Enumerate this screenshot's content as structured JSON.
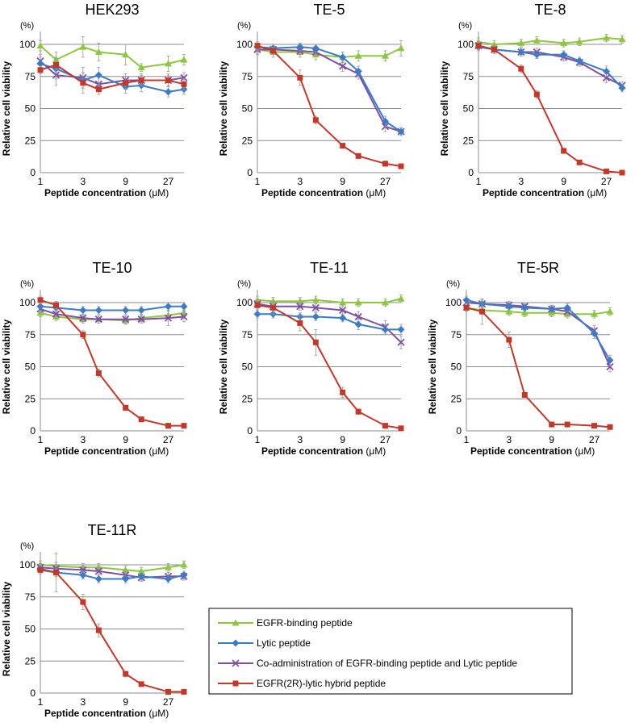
{
  "chart_data": {
    "type": "line",
    "legend": {
      "placement": "bottom-right",
      "series": [
        {
          "key": "egfr",
          "name": "EGFR-binding peptide",
          "color": "#8DC63F",
          "marker": "triangle"
        },
        {
          "key": "lytic",
          "name": "Lytic peptide",
          "color": "#3B7CC4",
          "marker": "diamond"
        },
        {
          "key": "coadmin",
          "name": "Co-administration of EGFR-binding peptide and Lytic peptide",
          "color": "#7F4FA6",
          "marker": "x"
        },
        {
          "key": "hybrid",
          "name": "EGFR(2R)-lytic hybrid peptide",
          "color": "#C0392B",
          "marker": "square"
        }
      ]
    },
    "x": [
      1,
      1.5,
      3,
      4.5,
      9,
      13.5,
      27,
      40.5
    ],
    "xticks": [
      1,
      3,
      9,
      27
    ],
    "xtick_labels": [
      "1",
      "3",
      "9",
      "27"
    ],
    "yticks": [
      0,
      25,
      50,
      75,
      100
    ],
    "ytick_labels": [
      "0",
      "25",
      "50",
      "75",
      "100"
    ],
    "ylim": [
      0,
      110
    ],
    "y_unit": "(%)",
    "ylabel": "Relative cell viability",
    "xlabel": "Peptide concentration",
    "xlabel_unit": "(μM)",
    "panels": [
      {
        "title": "HEK293",
        "series": {
          "egfr": [
            99,
            88,
            98,
            94,
            92,
            82,
            85,
            88
          ],
          "lytic": [
            85,
            81,
            72,
            76,
            67,
            68,
            63,
            65
          ],
          "coadmin": [
            87,
            76,
            74,
            69,
            72,
            72,
            72,
            74
          ],
          "hybrid": [
            80,
            84,
            70,
            65,
            70,
            72,
            72,
            69
          ]
        },
        "errors": {
          "egfr": [
            4,
            6,
            8,
            7,
            8,
            3,
            6,
            4
          ],
          "lytic": [
            5,
            8,
            6,
            6,
            5,
            5,
            4,
            4
          ],
          "coadmin": [
            5,
            8,
            8,
            6,
            5,
            5,
            5,
            4
          ],
          "hybrid": [
            3,
            6,
            8,
            4,
            5,
            4,
            4,
            4
          ]
        }
      },
      {
        "title": "TE-5",
        "series": {
          "egfr": [
            96,
            94,
            94,
            92,
            90,
            91,
            91,
            97
          ],
          "lytic": [
            98,
            97,
            98,
            97,
            90,
            79,
            40,
            32
          ],
          "coadmin": [
            96,
            96,
            95,
            94,
            83,
            77,
            36,
            32
          ],
          "hybrid": [
            99,
            95,
            74,
            41,
            21,
            13,
            7,
            5
          ]
        },
        "errors": {
          "egfr": [
            4,
            4,
            4,
            4,
            4,
            4,
            4,
            6
          ],
          "lytic": [
            3,
            3,
            3,
            3,
            4,
            4,
            4,
            3
          ],
          "coadmin": [
            3,
            3,
            3,
            3,
            4,
            4,
            4,
            3
          ],
          "hybrid": [
            3,
            3,
            6,
            3,
            2,
            2,
            2,
            1
          ]
        }
      },
      {
        "title": "TE-8",
        "series": {
          "egfr": [
            102,
            100,
            101,
            103,
            101,
            102,
            105,
            104
          ],
          "lytic": [
            98,
            96,
            94,
            92,
            92,
            87,
            79,
            66
          ],
          "coadmin": [
            99,
            96,
            94,
            94,
            90,
            86,
            74,
            68
          ],
          "hybrid": [
            99,
            96,
            81,
            61,
            17,
            8,
            1,
            0
          ]
        },
        "errors": {
          "egfr": [
            3,
            3,
            3,
            3,
            3,
            3,
            3,
            3
          ],
          "lytic": [
            3,
            3,
            3,
            3,
            3,
            3,
            4,
            3
          ],
          "coadmin": [
            3,
            3,
            3,
            3,
            3,
            3,
            4,
            3
          ],
          "hybrid": [
            3,
            3,
            3,
            3,
            2,
            1,
            1,
            1
          ]
        }
      },
      {
        "title": "TE-10",
        "series": {
          "egfr": [
            92,
            89,
            87,
            87,
            86,
            88,
            90,
            92
          ],
          "lytic": [
            97,
            96,
            94,
            94,
            94,
            94,
            97,
            97
          ],
          "coadmin": [
            95,
            91,
            88,
            87,
            87,
            87,
            88,
            89
          ],
          "hybrid": [
            102,
            98,
            75,
            45,
            18,
            9,
            4,
            4
          ]
        },
        "errors": {
          "egfr": [
            3,
            3,
            3,
            3,
            3,
            3,
            3,
            3
          ],
          "lytic": [
            3,
            3,
            3,
            3,
            3,
            3,
            3,
            3
          ],
          "coadmin": [
            3,
            3,
            3,
            3,
            3,
            3,
            6,
            4
          ],
          "hybrid": [
            3,
            3,
            3,
            3,
            2,
            1,
            1,
            1
          ]
        }
      },
      {
        "title": "TE-11",
        "series": {
          "egfr": [
            102,
            101,
            101,
            102,
            100,
            100,
            100,
            103
          ],
          "lytic": [
            91,
            91,
            89,
            89,
            88,
            83,
            79,
            79
          ],
          "coadmin": [
            99,
            97,
            97,
            96,
            94,
            89,
            81,
            69
          ],
          "hybrid": [
            98,
            96,
            84,
            69,
            30,
            15,
            4,
            2
          ]
        },
        "errors": {
          "egfr": [
            3,
            3,
            3,
            3,
            3,
            3,
            3,
            3
          ],
          "lytic": [
            3,
            3,
            3,
            3,
            3,
            4,
            4,
            4
          ],
          "coadmin": [
            3,
            3,
            3,
            3,
            4,
            4,
            5,
            5
          ],
          "hybrid": [
            3,
            5,
            6,
            10,
            4,
            2,
            1,
            1
          ]
        }
      },
      {
        "title": "TE-5R",
        "series": {
          "egfr": [
            96,
            94,
            93,
            92,
            92,
            91,
            91,
            93
          ],
          "lytic": [
            102,
            99,
            97,
            96,
            95,
            96,
            76,
            55
          ],
          "coadmin": [
            100,
            99,
            98,
            97,
            95,
            93,
            78,
            50
          ],
          "hybrid": [
            96,
            93,
            71,
            28,
            5,
            5,
            4,
            3
          ]
        },
        "errors": {
          "egfr": [
            3,
            3,
            3,
            3,
            3,
            3,
            3,
            3
          ],
          "lytic": [
            3,
            3,
            3,
            3,
            3,
            3,
            4,
            4
          ],
          "coadmin": [
            3,
            3,
            3,
            3,
            3,
            3,
            4,
            4
          ],
          "hybrid": [
            3,
            10,
            6,
            2,
            1,
            1,
            1,
            1
          ]
        }
      },
      {
        "title": "TE-11R",
        "series": {
          "egfr": [
            100,
            99,
            98,
            98,
            96,
            95,
            98,
            100
          ],
          "lytic": [
            97,
            94,
            92,
            89,
            89,
            91,
            89,
            92
          ],
          "coadmin": [
            98,
            97,
            96,
            95,
            92,
            90,
            91,
            91
          ],
          "hybrid": [
            96,
            94,
            71,
            49,
            15,
            7,
            1,
            1
          ]
        },
        "errors": {
          "egfr": [
            3,
            3,
            3,
            3,
            3,
            3,
            3,
            3
          ],
          "lytic": [
            3,
            3,
            3,
            3,
            3,
            3,
            3,
            3
          ],
          "coadmin": [
            3,
            3,
            3,
            3,
            3,
            3,
            3,
            3
          ],
          "hybrid": [
            3,
            15,
            6,
            5,
            2,
            1,
            1,
            1
          ]
        }
      }
    ]
  }
}
